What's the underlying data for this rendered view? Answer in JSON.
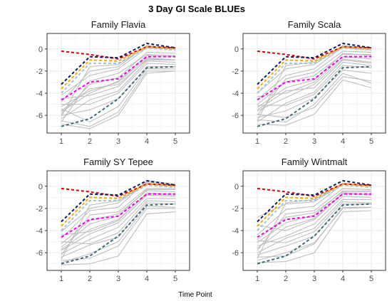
{
  "chart_data": {
    "type": "line",
    "title": "3 Day GI Scale BLUEs",
    "xlabel": "Time Point",
    "ylabel": "",
    "x": [
      1,
      2,
      3,
      4,
      5
    ],
    "x_ticks": [
      "1",
      "2",
      "3",
      "4",
      "5"
    ],
    "y_ticks": [
      "0",
      "-2",
      "-4",
      "-6"
    ],
    "xlim": [
      0.5,
      5.5
    ],
    "ylim": [
      -7.6,
      1.4
    ],
    "grid": true,
    "legend": "none",
    "colors": {
      "background_lines": "#bebebe",
      "red": "#dd0000",
      "navy": "#0a1a5a",
      "orange": "#ffa500",
      "lightblue": "#9fc6d6",
      "magenta": "#ee00ee",
      "slate": "#3d6a7a",
      "panel_border": "#333333",
      "grid": "#ebebeb"
    },
    "reference_series": [
      {
        "color": "red",
        "values": [
          -0.2,
          -0.5,
          -0.9,
          0.2,
          0.1
        ]
      },
      {
        "color": "navy",
        "values": [
          -3.2,
          -0.7,
          -0.8,
          0.5,
          0.1
        ]
      },
      {
        "color": "orange",
        "values": [
          -3.6,
          -1.0,
          -1.1,
          0.2,
          0.0
        ]
      },
      {
        "color": "lightblue",
        "values": [
          -4.0,
          -1.3,
          -1.3,
          0.1,
          -0.1
        ]
      },
      {
        "color": "magenta",
        "values": [
          -4.6,
          -3.0,
          -2.7,
          -0.7,
          -0.7
        ]
      },
      {
        "color": "slate",
        "values": [
          -7.0,
          -6.3,
          -4.5,
          -1.7,
          -1.6
        ]
      }
    ],
    "panels": [
      {
        "title": "Family Flavia",
        "background": [
          [
            -5.6,
            -3.6,
            -3.2,
            -1.0,
            -1.0
          ],
          [
            -6.8,
            -7.2,
            -6.0,
            -2.2,
            -2.0
          ],
          [
            -6.5,
            -7.0,
            -5.7,
            -2.0,
            -2.0
          ],
          [
            -4.2,
            -2.4,
            -1.8,
            0.1,
            0.0
          ],
          [
            -5.2,
            -3.8,
            -3.0,
            -0.8,
            -1.0
          ],
          [
            -6.0,
            -5.5,
            -4.5,
            -1.6,
            -1.6
          ],
          [
            -4.8,
            -2.0,
            -1.6,
            0.3,
            0.1
          ],
          [
            -6.3,
            -4.6,
            -3.8,
            -1.1,
            -1.2
          ],
          [
            -5.9,
            -3.2,
            -2.6,
            -0.3,
            -0.4
          ],
          [
            -5.4,
            -6.6,
            -5.2,
            -1.8,
            -1.8
          ],
          [
            -4.5,
            -4.2,
            -3.4,
            -0.9,
            -1.0
          ],
          [
            -6.6,
            -2.9,
            -2.2,
            -0.5,
            -0.6
          ],
          [
            -5.0,
            -5.0,
            -4.0,
            -1.3,
            -1.4
          ],
          [
            -6.1,
            -1.6,
            -1.4,
            0.2,
            0.0
          ],
          [
            -5.7,
            -4.0,
            -2.9,
            -0.6,
            -0.7
          ]
        ]
      },
      {
        "title": "Family Scala",
        "background": [
          [
            -5.0,
            -3.0,
            -2.4,
            -0.5,
            -0.5
          ],
          [
            -6.8,
            -6.9,
            -5.9,
            -2.8,
            -3.5
          ],
          [
            -6.4,
            -6.6,
            -5.0,
            -2.2,
            -3.1
          ],
          [
            -4.0,
            -1.8,
            -1.4,
            0.3,
            0.1
          ],
          [
            -5.6,
            -4.4,
            -3.2,
            -0.9,
            -1.2
          ],
          [
            -6.2,
            -5.6,
            -4.4,
            -1.9,
            -2.2
          ],
          [
            -4.6,
            -2.4,
            -1.8,
            0.2,
            -0.1
          ],
          [
            -6.6,
            -4.9,
            -3.9,
            -1.2,
            -1.5
          ],
          [
            -5.3,
            -3.5,
            -2.8,
            -0.4,
            -0.6
          ],
          [
            -5.9,
            -6.2,
            -5.3,
            -2.5,
            -2.9
          ],
          [
            -4.3,
            -4.0,
            -3.0,
            -0.7,
            -0.9
          ],
          [
            -6.0,
            -2.7,
            -2.1,
            -0.2,
            -0.3
          ],
          [
            -5.1,
            -5.1,
            -4.1,
            -1.5,
            -1.7
          ],
          [
            -6.5,
            -1.5,
            -1.2,
            0.1,
            -0.1
          ],
          [
            -5.5,
            -3.8,
            -3.5,
            -1.0,
            -1.3
          ]
        ]
      },
      {
        "title": "Family SY Tepee",
        "background": [
          [
            -5.2,
            -3.1,
            -2.5,
            -0.4,
            -0.5
          ],
          [
            -7.1,
            -7.0,
            -6.3,
            -2.5,
            -2.3
          ],
          [
            -6.7,
            -6.5,
            -5.4,
            -2.0,
            -2.0
          ],
          [
            -4.1,
            -2.0,
            -1.5,
            0.4,
            0.1
          ],
          [
            -5.8,
            -4.3,
            -3.3,
            -0.8,
            -0.9
          ],
          [
            -6.4,
            -5.3,
            -4.6,
            -1.5,
            -1.6
          ],
          [
            -4.7,
            -2.2,
            -1.9,
            0.5,
            0.2
          ],
          [
            -6.1,
            -4.8,
            -3.7,
            -1.1,
            -1.1
          ],
          [
            -5.5,
            -3.4,
            -2.7,
            -0.3,
            -0.3
          ],
          [
            -6.9,
            -6.1,
            -5.0,
            -1.8,
            -1.9
          ],
          [
            -4.4,
            -4.1,
            -3.1,
            -0.6,
            -0.7
          ],
          [
            -6.2,
            -2.6,
            -2.3,
            -0.2,
            -0.2
          ],
          [
            -5.0,
            -5.2,
            -4.2,
            -1.3,
            -1.4
          ],
          [
            -6.6,
            -1.7,
            -1.3,
            0.3,
            0.0
          ],
          [
            -5.7,
            -3.9,
            -3.0,
            -0.7,
            -0.8
          ]
        ]
      },
      {
        "title": "Family Wintmalt",
        "background": [
          [
            -4.8,
            -2.8,
            -2.4,
            -0.5,
            -0.5
          ],
          [
            -6.9,
            -6.8,
            -6.0,
            -2.3,
            -2.2
          ],
          [
            -6.4,
            -6.3,
            -5.2,
            -1.9,
            -1.9
          ],
          [
            -2.8,
            -1.6,
            -1.4,
            0.3,
            0.0
          ],
          [
            -5.4,
            -4.5,
            -3.4,
            -0.9,
            -1.0
          ],
          [
            -6.2,
            -5.4,
            -4.5,
            -1.6,
            -1.6
          ],
          [
            -4.4,
            -2.1,
            -1.8,
            0.2,
            0.1
          ],
          [
            -6.0,
            -4.7,
            -3.8,
            -1.2,
            -1.2
          ],
          [
            -5.1,
            -3.3,
            -2.6,
            -0.4,
            -0.4
          ],
          [
            -6.7,
            -6.0,
            -5.1,
            -2.0,
            -1.9
          ],
          [
            -3.5,
            -4.0,
            -3.0,
            -0.7,
            -0.8
          ],
          [
            -5.8,
            -2.5,
            -2.2,
            -0.2,
            -0.3
          ],
          [
            -4.9,
            -5.1,
            -4.1,
            -1.4,
            -1.5
          ],
          [
            -6.5,
            -1.5,
            -1.2,
            0.2,
            0.0
          ],
          [
            -5.6,
            -3.7,
            -2.9,
            -0.6,
            -0.7
          ]
        ]
      }
    ]
  }
}
